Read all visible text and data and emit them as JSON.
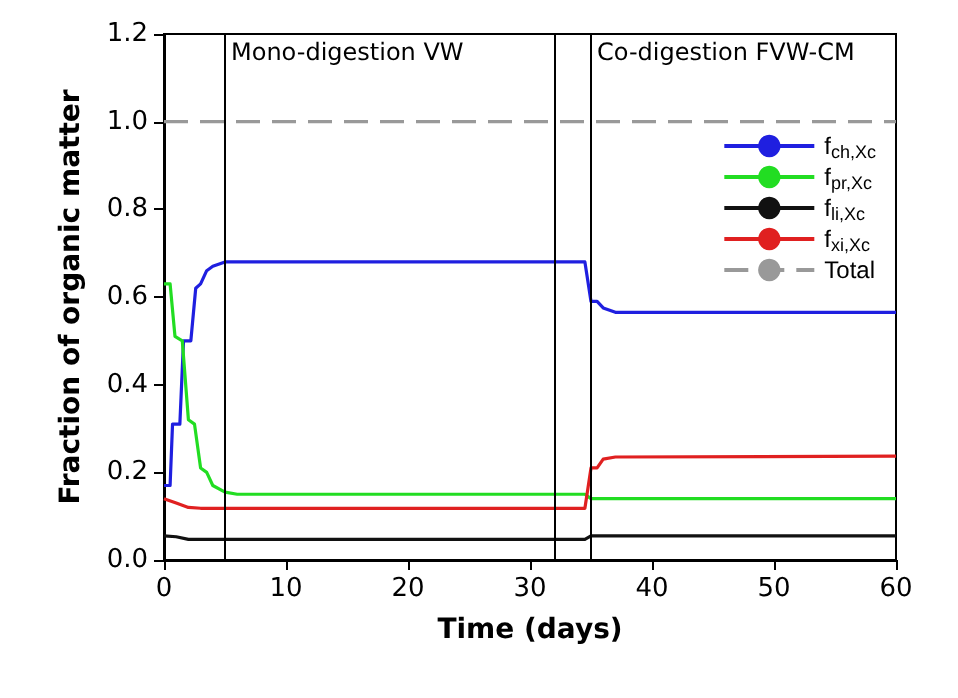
{
  "chart_data": {
    "type": "line",
    "xlabel": "Time (days)",
    "ylabel": "Fraction of organic matter",
    "xlim": [
      0,
      60
    ],
    "xticks": [
      0,
      10,
      20,
      30,
      40,
      50,
      60
    ],
    "ylim": [
      0,
      1.2
    ],
    "yticks": [
      {
        "value": 0,
        "label": "0.0"
      },
      {
        "value": 0.2,
        "label": "0.2"
      },
      {
        "value": 0.4,
        "label": "0.4"
      },
      {
        "value": 0.6,
        "label": "0.6"
      },
      {
        "value": 0.8,
        "label": "0.8"
      },
      {
        "value": 1,
        "label": "1.0"
      },
      {
        "value": 1.2,
        "label": "1.2"
      }
    ],
    "grid": false,
    "legend": "top right",
    "marker": "none",
    "series": [
      {
        "name": "f$_{ch,Xc}$",
        "color": "#1f1fe0",
        "x": [
          0,
          0.5,
          0.7,
          1.3,
          1.6,
          2.2,
          2.6,
          3,
          3.5,
          4,
          5,
          34.5,
          35,
          35.5,
          36,
          37,
          60
        ],
        "values": [
          0.17,
          0.17,
          0.31,
          0.31,
          0.5,
          0.5,
          0.62,
          0.63,
          0.66,
          0.67,
          0.68,
          0.68,
          0.59,
          0.59,
          0.575,
          0.565,
          0.565
        ]
      },
      {
        "name": "f$_{pr,Xc}$",
        "color": "#22dd22",
        "x": [
          0,
          0.5,
          0.9,
          1.5,
          2,
          2.5,
          3,
          3.5,
          4,
          5,
          6,
          34.5,
          35,
          60
        ],
        "values": [
          0.63,
          0.63,
          0.51,
          0.5,
          0.32,
          0.31,
          0.21,
          0.2,
          0.17,
          0.155,
          0.15,
          0.15,
          0.14,
          0.14
        ]
      },
      {
        "name": "f$_{li,Xc}$",
        "color": "#111111",
        "x": [
          0,
          1,
          2,
          34.5,
          35,
          60
        ],
        "values": [
          0.055,
          0.053,
          0.047,
          0.047,
          0.055,
          0.055
        ]
      },
      {
        "name": "f$_{xi,Xc}$",
        "color": "#e02020",
        "x": [
          0,
          1,
          2,
          3,
          34.5,
          35,
          35.5,
          36,
          37,
          60
        ],
        "values": [
          0.14,
          0.13,
          0.12,
          0.118,
          0.118,
          0.21,
          0.21,
          0.23,
          0.235,
          0.237
        ]
      },
      {
        "name": "Total",
        "color": "#999999",
        "line_style": "dashed",
        "x": [
          0,
          60
        ],
        "values": [
          1,
          1
        ]
      }
    ],
    "ref_lines": [
      {
        "axis": "x",
        "value": 5,
        "label": "Mono-digestion VW"
      },
      {
        "axis": "x",
        "value": 32,
        "label": null
      },
      {
        "axis": "x",
        "value": 35,
        "label": "Co-digestion FVW-CM"
      }
    ]
  }
}
